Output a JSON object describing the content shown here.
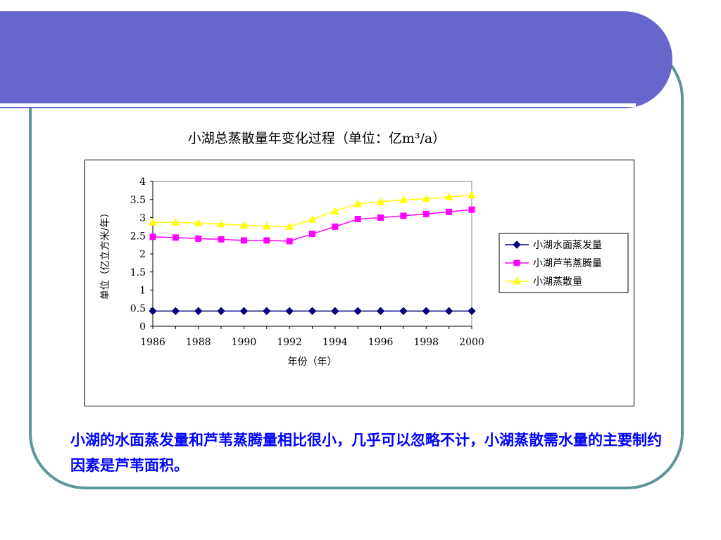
{
  "caption": "小湖的水面蒸发量和芦苇蒸腾量相比很小，几乎可以忽略不计，小湖蒸散需水量的主要制约因素是芦苇面积。",
  "colors": {
    "banner": "#6766cc",
    "frame": "#5f9596",
    "caption": "#0000ff"
  },
  "chart_data": {
    "type": "line",
    "title_main": "小湖总蒸散量年变化过程",
    "title_unit": "（单位：亿m³/a）",
    "xlabel": "年份（年）",
    "ylabel": "单位（亿立方米/年）",
    "x": [
      1986,
      1987,
      1988,
      1989,
      1990,
      1991,
      1992,
      1993,
      1994,
      1995,
      1996,
      1997,
      1998,
      1999,
      2000
    ],
    "xticks": [
      "1986",
      "1988",
      "1990",
      "1992",
      "1994",
      "1996",
      "1998",
      "2000"
    ],
    "yticks": [
      "0",
      "0.5",
      "1",
      "1.5",
      "2",
      "2.5",
      "3",
      "3.5",
      "4"
    ],
    "ylim": [
      0,
      4
    ],
    "xlim": [
      1986,
      2000
    ],
    "grid": false,
    "legend_position": "right",
    "series": [
      {
        "name": "小湖水面蒸发量",
        "color": "#000080",
        "marker": "diamond",
        "values": [
          0.42,
          0.42,
          0.42,
          0.42,
          0.42,
          0.42,
          0.42,
          0.42,
          0.42,
          0.42,
          0.42,
          0.42,
          0.42,
          0.42,
          0.42
        ]
      },
      {
        "name": "小湖芦苇蒸腾量",
        "color": "#ff00ff",
        "marker": "square",
        "values": [
          2.47,
          2.45,
          2.42,
          2.4,
          2.37,
          2.37,
          2.35,
          2.55,
          2.75,
          2.96,
          3.0,
          3.05,
          3.1,
          3.16,
          3.22
        ]
      },
      {
        "name": "小湖蒸散量",
        "color": "#ffff00",
        "marker": "triangle",
        "values": [
          2.87,
          2.87,
          2.85,
          2.82,
          2.79,
          2.76,
          2.75,
          2.95,
          3.18,
          3.38,
          3.44,
          3.49,
          3.52,
          3.57,
          3.62
        ]
      }
    ]
  }
}
